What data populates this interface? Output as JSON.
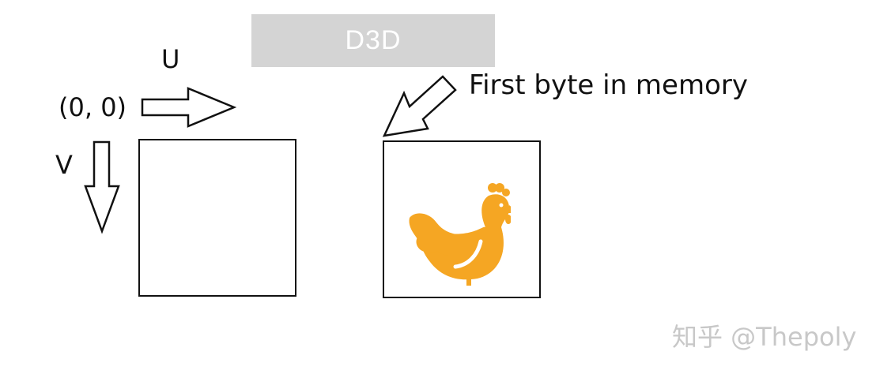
{
  "header": {
    "title": "D3D"
  },
  "axes": {
    "u_label": "U",
    "v_label": "V",
    "origin_label": "(0, 0)"
  },
  "annotation": {
    "first_byte": "First byte in memory"
  },
  "icons": {
    "u_arrow": "right-arrow-icon",
    "v_arrow": "down-arrow-icon",
    "pointer_arrow": "diagonal-arrow-icon",
    "image": "chicken-icon"
  },
  "colors": {
    "title_bar": "#d4d4d4",
    "title_text": "#ffffff",
    "chicken": "#f5a623",
    "watermark": "#c8c8c8"
  },
  "watermark": {
    "text": "知乎 @Thepoly"
  }
}
